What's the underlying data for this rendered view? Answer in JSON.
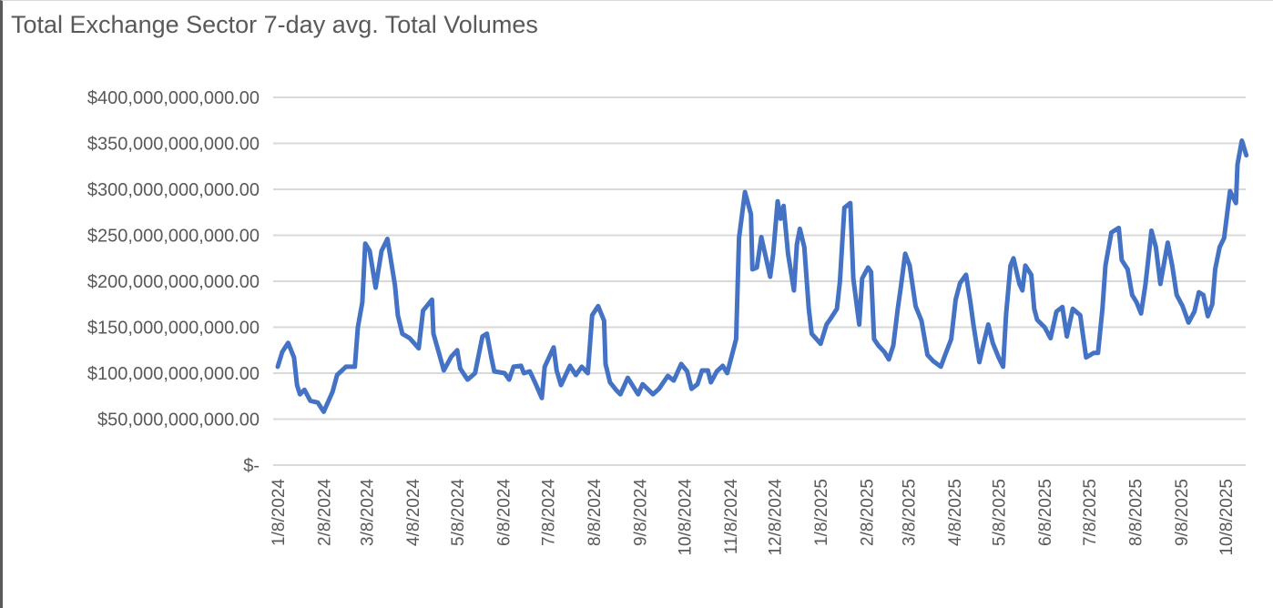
{
  "chart_data": {
    "type": "line",
    "title": "Total Exchange Sector 7-day avg. Total Volumes",
    "xlabel": "",
    "ylabel": "",
    "ylim": [
      0,
      400000000000
    ],
    "ytick_values": [
      0,
      50000000000,
      100000000000,
      150000000000,
      200000000000,
      250000000000,
      300000000000,
      350000000000,
      400000000000
    ],
    "ytick_labels": [
      "$-",
      "$50,000,000,000.00",
      "$100,000,000,000.00",
      "$150,000,000,000.00",
      "$200,000,000,000.00",
      "$250,000,000,000.00",
      "$300,000,000,000.00",
      "$350,000,000,000.00",
      "$400,000,000,000.00"
    ],
    "xtick_labels": [
      "1/8/2024",
      "2/8/2024",
      "3/8/2024",
      "4/8/2024",
      "5/8/2024",
      "6/8/2024",
      "7/8/2024",
      "8/8/2024",
      "9/8/2024",
      "10/8/2024",
      "11/8/2024",
      "12/8/2024",
      "1/8/2025",
      "2/8/2025",
      "3/8/2025",
      "4/8/2025",
      "5/8/2025",
      "6/8/2025",
      "7/8/2025",
      "8/8/2025",
      "9/8/2025",
      "10/8/2025"
    ],
    "grid": true,
    "legend": "none",
    "line_color": "#4472C4",
    "grid_color": "#D9D9D9",
    "series": [
      {
        "points": [
          [
            "2024-01-08",
            107000000000.0
          ],
          [
            "2024-01-11",
            123000000000.0
          ],
          [
            "2024-01-15",
            133000000000.0
          ],
          [
            "2024-01-19",
            117000000000.0
          ],
          [
            "2024-01-21",
            87000000000.0
          ],
          [
            "2024-01-23",
            77000000000.0
          ],
          [
            "2024-01-26",
            82000000000.0
          ],
          [
            "2024-01-30",
            70000000000.0
          ],
          [
            "2024-02-04",
            68000000000.0
          ],
          [
            "2024-02-08",
            58000000000.0
          ],
          [
            "2024-02-14",
            80000000000.0
          ],
          [
            "2024-02-17",
            98000000000.0
          ],
          [
            "2024-02-23",
            107000000000.0
          ],
          [
            "2024-02-29",
            107000000000.0
          ],
          [
            "2024-03-02",
            150000000000.0
          ],
          [
            "2024-03-05",
            177000000000.0
          ],
          [
            "2024-03-07",
            241000000000.0
          ],
          [
            "2024-03-10",
            233000000000.0
          ],
          [
            "2024-03-14",
            193000000000.0
          ],
          [
            "2024-03-18",
            233000000000.0
          ],
          [
            "2024-03-22",
            246000000000.0
          ],
          [
            "2024-03-27",
            196000000000.0
          ],
          [
            "2024-03-29",
            163000000000.0
          ],
          [
            "2024-04-01",
            143000000000.0
          ],
          [
            "2024-04-06",
            138000000000.0
          ],
          [
            "2024-04-12",
            127000000000.0
          ],
          [
            "2024-04-15",
            168000000000.0
          ],
          [
            "2024-04-21",
            180000000000.0
          ],
          [
            "2024-04-22",
            143000000000.0
          ],
          [
            "2024-04-26",
            120000000000.0
          ],
          [
            "2024-04-29",
            103000000000.0
          ],
          [
            "2024-05-04",
            118000000000.0
          ],
          [
            "2024-05-08",
            125000000000.0
          ],
          [
            "2024-05-10",
            105000000000.0
          ],
          [
            "2024-05-15",
            93000000000.0
          ],
          [
            "2024-05-20",
            100000000000.0
          ],
          [
            "2024-05-25",
            140000000000.0
          ],
          [
            "2024-05-28",
            143000000000.0
          ],
          [
            "2024-05-31",
            117000000000.0
          ],
          [
            "2024-06-02",
            102000000000.0
          ],
          [
            "2024-06-09",
            100000000000.0
          ],
          [
            "2024-06-12",
            93000000000.0
          ],
          [
            "2024-06-15",
            107000000000.0
          ],
          [
            "2024-06-20",
            108000000000.0
          ],
          [
            "2024-06-22",
            100000000000.0
          ],
          [
            "2024-06-26",
            102000000000.0
          ],
          [
            "2024-06-30",
            88000000000.0
          ],
          [
            "2024-07-04",
            73000000000.0
          ],
          [
            "2024-07-06",
            107000000000.0
          ],
          [
            "2024-07-12",
            128000000000.0
          ],
          [
            "2024-07-14",
            103000000000.0
          ],
          [
            "2024-07-17",
            87000000000.0
          ],
          [
            "2024-07-23",
            108000000000.0
          ],
          [
            "2024-07-27",
            98000000000.0
          ],
          [
            "2024-07-31",
            107000000000.0
          ],
          [
            "2024-08-04",
            100000000000.0
          ],
          [
            "2024-08-07",
            163000000000.0
          ],
          [
            "2024-08-11",
            173000000000.0
          ],
          [
            "2024-08-15",
            157000000000.0
          ],
          [
            "2024-08-16",
            110000000000.0
          ],
          [
            "2024-08-19",
            90000000000.0
          ],
          [
            "2024-08-23",
            82000000000.0
          ],
          [
            "2024-08-26",
            77000000000.0
          ],
          [
            "2024-08-31",
            95000000000.0
          ],
          [
            "2024-09-05",
            82000000000.0
          ],
          [
            "2024-09-07",
            77000000000.0
          ],
          [
            "2024-09-10",
            88000000000.0
          ],
          [
            "2024-09-17",
            77000000000.0
          ],
          [
            "2024-09-21",
            83000000000.0
          ],
          [
            "2024-09-27",
            97000000000.0
          ],
          [
            "2024-10-01",
            92000000000.0
          ],
          [
            "2024-10-06",
            110000000000.0
          ],
          [
            "2024-10-10",
            102000000000.0
          ],
          [
            "2024-10-13",
            83000000000.0
          ],
          [
            "2024-10-17",
            88000000000.0
          ],
          [
            "2024-10-20",
            103000000000.0
          ],
          [
            "2024-10-24",
            103000000000.0
          ],
          [
            "2024-10-26",
            90000000000.0
          ],
          [
            "2024-10-30",
            102000000000.0
          ],
          [
            "2024-11-03",
            108000000000.0
          ],
          [
            "2024-11-06",
            100000000000.0
          ],
          [
            "2024-11-12",
            137000000000.0
          ],
          [
            "2024-11-14",
            247000000000.0
          ],
          [
            "2024-11-18",
            297000000000.0
          ],
          [
            "2024-11-22",
            273000000000.0
          ],
          [
            "2024-11-23",
            213000000000.0
          ],
          [
            "2024-11-26",
            215000000000.0
          ],
          [
            "2024-11-29",
            248000000000.0
          ],
          [
            "2024-12-05",
            205000000000.0
          ],
          [
            "2024-12-07",
            230000000000.0
          ],
          [
            "2024-12-10",
            287000000000.0
          ],
          [
            "2024-12-12",
            268000000000.0
          ],
          [
            "2024-12-14",
            282000000000.0
          ],
          [
            "2024-12-17",
            230000000000.0
          ],
          [
            "2024-12-21",
            190000000000.0
          ],
          [
            "2024-12-23",
            240000000000.0
          ],
          [
            "2024-12-25",
            257000000000.0
          ],
          [
            "2024-12-28",
            237000000000.0
          ],
          [
            "2024-12-31",
            170000000000.0
          ],
          [
            "2025-01-02",
            143000000000.0
          ],
          [
            "2025-01-08",
            132000000000.0
          ],
          [
            "2025-01-12",
            153000000000.0
          ],
          [
            "2025-01-15",
            160000000000.0
          ],
          [
            "2025-01-19",
            170000000000.0
          ],
          [
            "2025-01-21",
            200000000000.0
          ],
          [
            "2025-01-24",
            280000000000.0
          ],
          [
            "2025-01-28",
            285000000000.0
          ],
          [
            "2025-01-30",
            203000000000.0
          ],
          [
            "2025-02-03",
            153000000000.0
          ],
          [
            "2025-02-05",
            203000000000.0
          ],
          [
            "2025-02-09",
            215000000000.0
          ],
          [
            "2025-02-11",
            210000000000.0
          ],
          [
            "2025-02-13",
            137000000000.0
          ],
          [
            "2025-02-16",
            130000000000.0
          ],
          [
            "2025-02-20",
            123000000000.0
          ],
          [
            "2025-02-23",
            115000000000.0
          ],
          [
            "2025-02-26",
            130000000000.0
          ],
          [
            "2025-03-01",
            170000000000.0
          ],
          [
            "2025-03-03",
            193000000000.0
          ],
          [
            "2025-03-06",
            230000000000.0
          ],
          [
            "2025-03-09",
            217000000000.0
          ],
          [
            "2025-03-13",
            173000000000.0
          ],
          [
            "2025-03-17",
            157000000000.0
          ],
          [
            "2025-03-21",
            120000000000.0
          ],
          [
            "2025-03-25",
            113000000000.0
          ],
          [
            "2025-03-30",
            107000000000.0
          ],
          [
            "2025-04-02",
            120000000000.0
          ],
          [
            "2025-04-06",
            137000000000.0
          ],
          [
            "2025-04-09",
            180000000000.0
          ],
          [
            "2025-04-12",
            198000000000.0
          ],
          [
            "2025-04-16",
            207000000000.0
          ],
          [
            "2025-04-19",
            177000000000.0
          ],
          [
            "2025-04-21",
            153000000000.0
          ],
          [
            "2025-04-25",
            112000000000.0
          ],
          [
            "2025-04-28",
            133000000000.0
          ],
          [
            "2025-05-01",
            153000000000.0
          ],
          [
            "2025-05-04",
            133000000000.0
          ],
          [
            "2025-05-08",
            117000000000.0
          ],
          [
            "2025-05-11",
            107000000000.0
          ],
          [
            "2025-05-13",
            163000000000.0
          ],
          [
            "2025-05-16",
            217000000000.0
          ],
          [
            "2025-05-18",
            225000000000.0
          ],
          [
            "2025-05-22",
            197000000000.0
          ],
          [
            "2025-05-24",
            190000000000.0
          ],
          [
            "2025-05-26",
            217000000000.0
          ],
          [
            "2025-05-30",
            207000000000.0
          ],
          [
            "2025-06-01",
            170000000000.0
          ],
          [
            "2025-06-03",
            158000000000.0
          ],
          [
            "2025-06-08",
            150000000000.0
          ],
          [
            "2025-06-12",
            138000000000.0
          ],
          [
            "2025-06-16",
            167000000000.0
          ],
          [
            "2025-06-20",
            172000000000.0
          ],
          [
            "2025-06-23",
            140000000000.0
          ],
          [
            "2025-06-27",
            170000000000.0
          ],
          [
            "2025-07-02",
            163000000000.0
          ],
          [
            "2025-07-04",
            140000000000.0
          ],
          [
            "2025-07-06",
            117000000000.0
          ],
          [
            "2025-07-11",
            122000000000.0
          ],
          [
            "2025-07-14",
            122000000000.0
          ],
          [
            "2025-07-17",
            170000000000.0
          ],
          [
            "2025-07-19",
            217000000000.0
          ],
          [
            "2025-07-23",
            253000000000.0
          ],
          [
            "2025-07-28",
            258000000000.0
          ],
          [
            "2025-07-30",
            223000000000.0
          ],
          [
            "2025-08-03",
            213000000000.0
          ],
          [
            "2025-08-06",
            185000000000.0
          ],
          [
            "2025-08-09",
            177000000000.0
          ],
          [
            "2025-08-12",
            165000000000.0
          ],
          [
            "2025-08-15",
            197000000000.0
          ],
          [
            "2025-08-19",
            255000000000.0
          ],
          [
            "2025-08-22",
            237000000000.0
          ],
          [
            "2025-08-25",
            197000000000.0
          ],
          [
            "2025-08-30",
            242000000000.0
          ],
          [
            "2025-09-02",
            217000000000.0
          ],
          [
            "2025-09-05",
            185000000000.0
          ],
          [
            "2025-09-09",
            173000000000.0
          ],
          [
            "2025-09-13",
            155000000000.0
          ],
          [
            "2025-09-17",
            167000000000.0
          ],
          [
            "2025-09-20",
            188000000000.0
          ],
          [
            "2025-09-23",
            185000000000.0
          ],
          [
            "2025-09-26",
            162000000000.0
          ],
          [
            "2025-09-29",
            175000000000.0
          ],
          [
            "2025-10-01",
            213000000000.0
          ],
          [
            "2025-10-04",
            237000000000.0
          ],
          [
            "2025-10-07",
            247000000000.0
          ],
          [
            "2025-10-09",
            273000000000.0
          ],
          [
            "2025-10-11",
            298000000000.0
          ],
          [
            "2025-10-15",
            285000000000.0
          ],
          [
            "2025-10-16",
            327000000000.0
          ],
          [
            "2025-10-19",
            353000000000.0
          ],
          [
            "2025-10-22",
            337000000000.0
          ]
        ]
      }
    ]
  }
}
